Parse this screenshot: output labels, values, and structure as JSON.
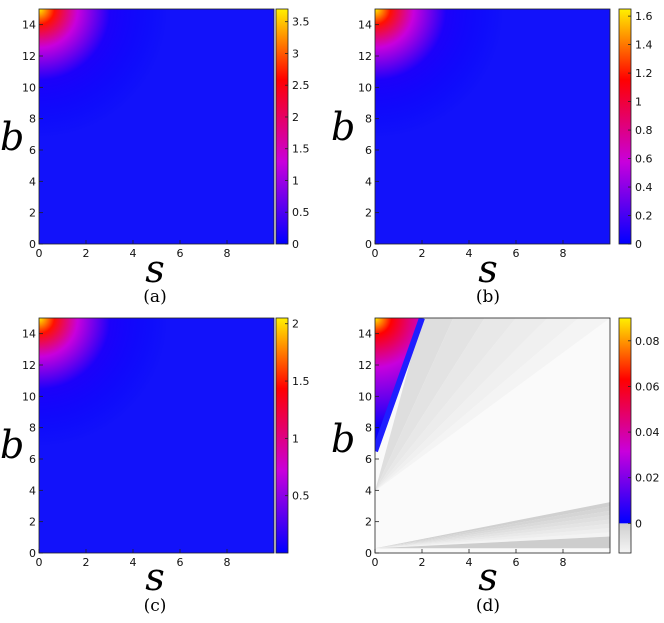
{
  "chart_data": [
    {
      "type": "heatmap",
      "panel_label": "(a)",
      "xlabel": "s",
      "ylabel": "b",
      "xlim": [
        0,
        10
      ],
      "ylim": [
        0,
        15
      ],
      "xticks": [
        "0",
        "2",
        "4",
        "6",
        "8"
      ],
      "yticks": [
        "0",
        "2",
        "4",
        "6",
        "8",
        "10",
        "12",
        "14"
      ],
      "colorbar": {
        "range": [
          0,
          3.7
        ],
        "ticks": [
          "0",
          "0.5",
          "1",
          "1.5",
          "2",
          "2.5",
          "3",
          "3.5"
        ],
        "map": "blue-magenta-red-yellow"
      },
      "surface": {
        "max": 3.7,
        "peak_at": [
          0,
          15
        ]
      }
    },
    {
      "type": "heatmap",
      "panel_label": "(b)",
      "xlabel": "s",
      "ylabel": "b",
      "xlim": [
        0,
        10
      ],
      "ylim": [
        0,
        15
      ],
      "xticks": [
        "0",
        "2",
        "4",
        "6",
        "8"
      ],
      "yticks": [
        "0",
        "2",
        "4",
        "6",
        "8",
        "10",
        "12",
        "14"
      ],
      "colorbar": {
        "range": [
          0,
          1.65
        ],
        "ticks": [
          "0",
          "0.2",
          "0.4",
          "0.6",
          "0.8",
          "1",
          "1.2",
          "1.4",
          "1.6"
        ],
        "map": "blue-magenta-red-yellow"
      },
      "surface": {
        "max": 1.65,
        "peak_at": [
          0,
          15
        ]
      }
    },
    {
      "type": "heatmap",
      "panel_label": "(c)",
      "xlabel": "s",
      "ylabel": "b",
      "xlim": [
        0,
        10
      ],
      "ylim": [
        0,
        15
      ],
      "xticks": [
        "0",
        "2",
        "4",
        "6",
        "8"
      ],
      "yticks": [
        "0",
        "2",
        "4",
        "6",
        "8",
        "10",
        "12",
        "14"
      ],
      "colorbar": {
        "range": [
          0,
          2.05
        ],
        "ticks": [
          "0.5",
          "1",
          "1.5",
          "2"
        ],
        "map": "blue-magenta-red-yellow"
      },
      "surface": {
        "max": 2.05,
        "peak_at": [
          0,
          15
        ]
      }
    },
    {
      "type": "heatmap",
      "panel_label": "(d)",
      "xlabel": "s",
      "ylabel": "b",
      "xlim": [
        0,
        10
      ],
      "ylim": [
        0,
        15
      ],
      "xticks": [
        "0",
        "2",
        "4",
        "6",
        "8"
      ],
      "yticks": [
        "0",
        "2",
        "4",
        "6",
        "8",
        "10",
        "12",
        "14"
      ],
      "colorbar": {
        "range": [
          -0.013,
          0.09
        ],
        "ticks": [
          "0",
          "0.02",
          "0.04",
          "0.06",
          "0.08"
        ],
        "map": "grey-below-zero, blue-magenta-red-yellow-above"
      },
      "surface": {
        "max": 0.09,
        "peak_at": [
          0,
          15
        ],
        "boundary_line": [
          [
            0,
            6.5
          ],
          [
            2,
            15
          ]
        ]
      }
    }
  ]
}
